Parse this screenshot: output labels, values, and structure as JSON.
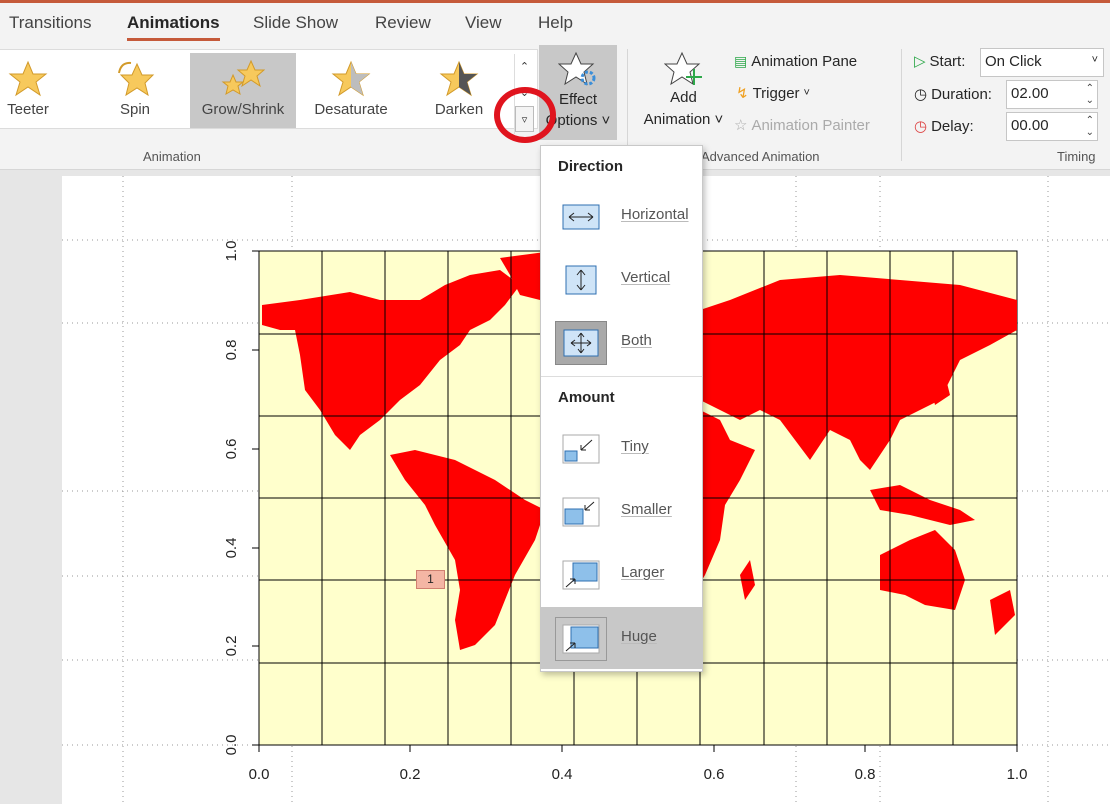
{
  "tabs": [
    {
      "label": "Transitions"
    },
    {
      "label": "Animations",
      "active": true
    },
    {
      "label": "Slide Show"
    },
    {
      "label": "Review"
    },
    {
      "label": "View"
    },
    {
      "label": "Help"
    }
  ],
  "gallery": {
    "items": [
      {
        "label": "Teeter"
      },
      {
        "label": "Spin"
      },
      {
        "label": "Grow/Shrink",
        "selected": true
      },
      {
        "label": "Desaturate"
      },
      {
        "label": "Darken"
      }
    ],
    "group_label": "Animation"
  },
  "effect_options": {
    "line1": "Effect",
    "line2": "Options",
    "icon": "star-gear-icon"
  },
  "advanced": {
    "add_line1": "Add",
    "add_line2": "Animation",
    "pane": "Animation Pane",
    "trigger": "Trigger",
    "painter": "Animation Painter",
    "group_label": "Advanced Animation"
  },
  "timing": {
    "start_label": "Start:",
    "start_value": "On Click",
    "duration_label": "Duration:",
    "duration_value": "02.00",
    "delay_label": "Delay:",
    "delay_value": "00.00",
    "group_label": "Timing"
  },
  "menu": {
    "direction_header": "Direction",
    "amount_header": "Amount",
    "direction": [
      {
        "label": "Horizontal"
      },
      {
        "label": "Vertical"
      },
      {
        "label": "Both",
        "current": true
      }
    ],
    "amount": [
      {
        "label": "Tiny"
      },
      {
        "label": "Smaller"
      },
      {
        "label": "Larger"
      },
      {
        "label": "Huge",
        "hover": true
      }
    ]
  },
  "slide": {
    "animation_tag": "1",
    "chart": {
      "x_ticks": [
        "0.0",
        "0.2",
        "0.4",
        "0.6",
        "0.8",
        "1.0"
      ],
      "y_ticks": [
        "0.0",
        "0.2",
        "0.4",
        "0.6",
        "0.8",
        "1.0"
      ],
      "land_color": "#ff0000",
      "background_color": "#ffffcc"
    }
  },
  "colors": {
    "accent": "#c55a3a",
    "highlight_circle": "#e0141e"
  }
}
